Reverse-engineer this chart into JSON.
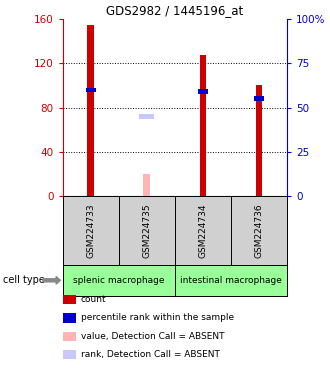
{
  "title": "GDS2982 / 1445196_at",
  "samples": [
    "GSM224733",
    "GSM224735",
    "GSM224734",
    "GSM224736"
  ],
  "red_bars": [
    155,
    0,
    128,
    100
  ],
  "pink_bars": [
    0,
    20,
    0,
    0
  ],
  "blue_squares_pct": [
    60,
    0,
    59,
    55
  ],
  "lavender_squares_pct": [
    0,
    45,
    0,
    0
  ],
  "absent_detection": [
    false,
    true,
    false,
    false
  ],
  "ylim_left": [
    0,
    160
  ],
  "ylim_right": [
    0,
    100
  ],
  "left_yticks": [
    0,
    40,
    80,
    120,
    160
  ],
  "right_yticks": [
    0,
    25,
    50,
    75,
    100
  ],
  "right_yticklabels": [
    "0",
    "25",
    "50",
    "75",
    "100%"
  ],
  "left_axis_color": "#cc0000",
  "right_axis_color": "#0000cc",
  "bar_width": 0.12,
  "grid_lines": [
    40,
    80,
    120
  ],
  "bg_plot": "#ffffff",
  "bg_sample_row": "#d0d0d0",
  "bg_cell_type_row": "#99ff99",
  "legend_items": [
    {
      "color": "#cc0000",
      "label": "count"
    },
    {
      "color": "#0000cc",
      "label": "percentile rank within the sample"
    },
    {
      "color": "#ffb3b3",
      "label": "value, Detection Call = ABSENT"
    },
    {
      "color": "#c8c8ff",
      "label": "rank, Detection Call = ABSENT"
    }
  ]
}
